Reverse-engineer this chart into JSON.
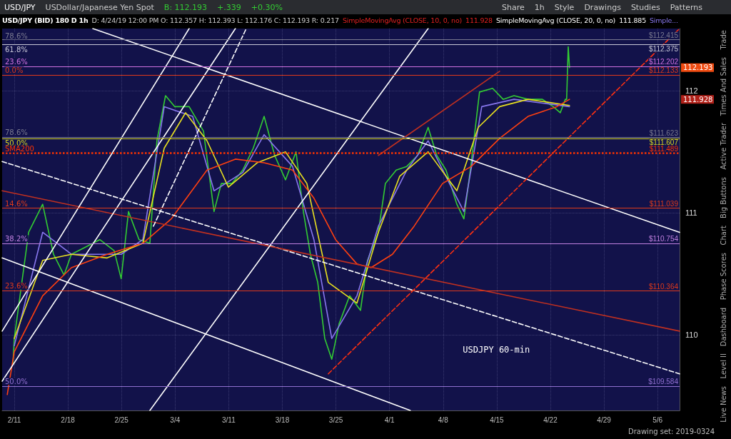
{
  "chart_data": {
    "type": "line",
    "title": "USD/JPY (BID) 180 D 1h",
    "subtitle": "D: 4/24/19 12:00 PM O: 112.357 H: 112.393 L: 112.176 C: 112.193 R: 0.217",
    "x": [
      "2019-02-10T20:00",
      "2019-02-11T00:00",
      "2019-02-12T21:00",
      "2019-02-14T17:00",
      "2019-02-16T03:00",
      "2019-02-17T12:00",
      "2019-02-18T11:00",
      "2019-02-20T08:00",
      "2019-02-22T04:00",
      "2019-02-24T01:00",
      "2019-02-24T23:00",
      "2019-02-25T22:00",
      "2019-02-27T07:00",
      "2019-02-28T17:00",
      "2019-03-01T15:00",
      "2019-03-02T18:00",
      "2019-03-03T23:00",
      "2019-03-05T20:00",
      "2019-03-07T17:00",
      "2019-03-09T02:00",
      "2019-03-10T01:00",
      "2019-03-11T10:00",
      "2019-03-12T20:00",
      "2019-03-14T05:00",
      "2019-03-15T15:00",
      "2019-03-17T00:00",
      "2019-03-18T10:00",
      "2019-03-19T19:00",
      "2019-03-20T18:00",
      "2019-03-21T16:00",
      "2019-03-22T15:00",
      "2019-03-23T13:00",
      "2019-03-24T11:00",
      "2019-03-25T10:00",
      "2019-03-26T19:00",
      "2019-03-28T05:00",
      "2019-03-29T03:00",
      "2019-03-30T13:00",
      "2019-03-31T11:00",
      "2019-04-01T21:00",
      "2019-04-03T06:00",
      "2019-04-04T16:00",
      "2019-04-06T01:00",
      "2019-04-07T04:00",
      "2019-04-08T09:00",
      "2019-04-09T19:00",
      "2019-04-10T17:00",
      "2019-04-11T16:00",
      "2019-04-12T18:00",
      "2019-04-14T11:00",
      "2019-04-15T20:00",
      "2019-04-17T06:00",
      "2019-04-19T02:00",
      "2019-04-20T23:00",
      "2019-04-22T09:00",
      "2019-04-23T07:00",
      "2019-04-23T23:00",
      "2019-04-24T03:00",
      "2019-04-24T08:00",
      "2019-04-24T12:00"
    ],
    "series": [
      {
        "color": "#33cc33",
        "values": [
          109.77,
          109.97,
          110.84,
          111.07,
          110.66,
          110.49,
          110.66,
          110.72,
          110.78,
          110.69,
          110.46,
          111.01,
          110.78,
          110.75,
          111.59,
          111.96,
          111.87,
          111.87,
          111.67,
          111.01,
          111.24,
          111.24,
          111.35,
          111.53,
          111.79,
          111.47,
          111.27,
          111.5,
          111.01,
          110.66,
          110.43,
          109.97,
          109.8,
          110.09,
          110.32,
          110.2,
          110.61,
          110.84,
          111.24,
          111.35,
          111.38,
          111.47,
          111.7,
          111.47,
          111.35,
          111.07,
          110.95,
          111.41,
          111.99,
          112.02,
          111.93,
          111.96,
          111.93,
          111.93,
          111.87,
          111.82,
          111.93,
          111.93,
          112.36,
          112.19
        ]
      },
      {
        "color": "#8877ee",
        "x": [
          "2019-02-11T00:00",
          "2019-02-14T17:00",
          "2019-02-18T11:00",
          "2019-02-24T23:00",
          "2019-02-27T19:00",
          "2019-03-02T14:00",
          "2019-03-06T07:00",
          "2019-03-09T02:00",
          "2019-03-12T20:00",
          "2019-03-15T15:00",
          "2019-03-19T08:00",
          "2019-03-22T03:00",
          "2019-03-24T11:00",
          "2019-03-27T18:00",
          "2019-03-30T13:00",
          "2019-04-03T06:00",
          "2019-04-06T01:00",
          "2019-04-08T20:00",
          "2019-04-10T17:00",
          "2019-04-13T01:00",
          "2019-04-17T06:00",
          "2019-04-24T12:00"
        ],
        "values": [
          109.91,
          110.84,
          110.66,
          110.66,
          110.78,
          111.87,
          111.79,
          111.18,
          111.33,
          111.64,
          111.38,
          110.78,
          109.97,
          110.32,
          110.89,
          111.35,
          111.59,
          111.24,
          111.01,
          111.87,
          111.93,
          111.87
        ]
      },
      {
        "color": "#e8e020",
        "x": [
          "2019-02-11T00:00",
          "2019-02-14T17:00",
          "2019-02-18T11:00",
          "2019-02-23T03:00",
          "2019-02-27T19:00",
          "2019-03-02T14:00",
          "2019-03-05T09:00",
          "2019-03-08T04:00",
          "2019-03-10T23:00",
          "2019-03-14T17:00",
          "2019-03-18T10:00",
          "2019-03-21T05:00",
          "2019-03-24T00:00",
          "2019-03-27T18:00",
          "2019-03-30T13:00",
          "2019-04-02T08:00",
          "2019-04-06T01:00",
          "2019-04-09T19:00",
          "2019-04-12T14:00",
          "2019-04-15T09:00",
          "2019-04-19T02:00",
          "2019-04-24T12:00"
        ],
        "values": [
          109.97,
          110.61,
          110.66,
          110.63,
          110.75,
          111.53,
          111.82,
          111.59,
          111.21,
          111.41,
          111.5,
          111.24,
          110.43,
          110.26,
          110.84,
          111.3,
          111.5,
          111.18,
          111.7,
          111.87,
          111.93,
          111.88
        ]
      },
      {
        "color": "#ff4010",
        "x": [
          "2019-02-10T02:00",
          "2019-02-11T00:00",
          "2019-02-14T17:00",
          "2019-02-18T11:00",
          "2019-02-23T03:00",
          "2019-02-27T19:00",
          "2019-03-03T12:00",
          "2019-03-08T04:00",
          "2019-03-11T21:00",
          "2019-03-15T15:00",
          "2019-03-19T08:00",
          "2019-03-22T03:00",
          "2019-03-24T23:00",
          "2019-03-27T18:00",
          "2019-03-29T14:00",
          "2019-04-01T09:00",
          "2019-04-04T05:00",
          "2019-04-07T22:00",
          "2019-04-11T16:00",
          "2019-04-15T09:00",
          "2019-04-19T02:00",
          "2019-04-22T20:00",
          "2019-04-24T12:00"
        ],
        "values": [
          109.51,
          109.86,
          110.32,
          110.55,
          110.66,
          110.75,
          110.95,
          111.35,
          111.44,
          111.41,
          111.35,
          111.12,
          110.78,
          110.58,
          110.55,
          110.66,
          110.89,
          111.24,
          111.38,
          111.61,
          111.79,
          111.87,
          111.93
        ]
      },
      {
        "color": "#ffffff",
        "x": [
          "2019-02-21T06:00",
          "2019-05-08T21:00"
        ],
        "values": [
          112.51,
          110.84
        ]
      },
      {
        "color": "#ffffff",
        "x": [
          "2019-02-09T10:00",
          "2019-04-03T17:00"
        ],
        "values": [
          110.63,
          109.38
        ]
      },
      {
        "color": "#ffffff",
        "line_style": "dashed",
        "x": [
          "2019-02-09T10:00",
          "2019-05-08T21:00"
        ],
        "values": [
          111.42,
          109.68
        ]
      },
      {
        "color": "#c03020",
        "x": [
          "2019-02-09T10:00",
          "2019-05-08T21:00"
        ],
        "values": [
          111.18,
          110.03
        ]
      },
      {
        "color": "#ffffff",
        "x": [
          "2019-02-09T10:00",
          "2019-03-05T20:00"
        ],
        "values": [
          110.03,
          112.51
        ]
      },
      {
        "color": "#ffffff",
        "x": [
          "2019-02-09T10:00",
          "2019-03-11T21:00"
        ],
        "values": [
          109.62,
          112.51
        ]
      },
      {
        "color": "#ffffff",
        "x": [
          "2019-02-28T17:00",
          "2019-04-06T01:00"
        ],
        "values": [
          109.38,
          112.51
        ]
      },
      {
        "color": "#ffffff",
        "line_style": "dashed",
        "x": [
          "2019-03-01T04:00",
          "2019-03-13T07:00"
        ],
        "values": [
          110.89,
          112.51
        ]
      },
      {
        "color": "#ff3010",
        "line_style": "dashed",
        "x": [
          "2019-03-24T00:00",
          "2019-05-08T21:00"
        ],
        "values": [
          109.68,
          112.51
        ]
      },
      {
        "color": "#c03020",
        "x": [
          "2019-03-30T13:00",
          "2019-04-15T09:00"
        ],
        "values": [
          111.47,
          112.16
        ]
      }
    ],
    "xlim": [
      "2019-02-09T10:00",
      "2019-05-08T21:00"
    ],
    "xticks": [
      {
        "value": "2019-02-11",
        "label": "2/11"
      },
      {
        "value": "2019-02-18",
        "label": "2/18"
      },
      {
        "value": "2019-02-25",
        "label": "2/25"
      },
      {
        "value": "2019-03-04",
        "label": "3/4"
      },
      {
        "value": "2019-03-11",
        "label": "3/11"
      },
      {
        "value": "2019-03-18",
        "label": "3/18"
      },
      {
        "value": "2019-03-25",
        "label": "3/25"
      },
      {
        "value": "2019-04-01",
        "label": "4/1"
      },
      {
        "value": "2019-04-08",
        "label": "4/8"
      },
      {
        "value": "2019-04-15",
        "label": "4/15"
      },
      {
        "value": "2019-04-22",
        "label": "4/22"
      },
      {
        "value": "2019-04-29",
        "label": "4/29"
      },
      {
        "value": "2019-05-06",
        "label": "5/6"
      }
    ],
    "ylim": [
      109.38,
      112.51
    ],
    "yticks": [
      110,
      111,
      112
    ],
    "grid": true,
    "marker": "none",
    "line_style": "solid",
    "ref_lines": [
      {
        "axis": "y",
        "value": 112.415,
        "label": "$112.415",
        "color": "#7a7a90"
      },
      {
        "axis": "y",
        "value": 112.375,
        "label": "$112.375",
        "color": "#c8c8d8"
      },
      {
        "axis": "y",
        "value": 112.202,
        "label": "$112.202",
        "color": "#d070e0"
      },
      {
        "axis": "y",
        "value": 112.133,
        "label": "$112.133",
        "color": "#e03a1a"
      },
      {
        "axis": "y",
        "value": 111.623,
        "label": "$111.623",
        "color": "#7a7a90"
      },
      {
        "axis": "y",
        "value": 111.607,
        "label": "$111.607",
        "color": "#d8d820"
      },
      {
        "axis": "y",
        "value": 111.489,
        "label": "$111.489",
        "color": "#ff3300",
        "line_style": "dotted"
      },
      {
        "axis": "y",
        "value": 111.039,
        "label": "$111.039",
        "color": "#e03a1a"
      },
      {
        "axis": "y",
        "value": 110.754,
        "label": "$110.754",
        "color": "#c080e0"
      },
      {
        "axis": "y",
        "value": 110.364,
        "label": "$110.364",
        "color": "#e03a1a"
      },
      {
        "axis": "y",
        "value": 109.584,
        "label": "$109.584",
        "color": "#9070d0"
      }
    ],
    "annotations": [
      "USD/JPY",
      "USDollar/Japanese Yen Spot",
      "B: 112.193",
      "+.339",
      "+0.30%",
      "Share",
      "1h",
      "Style",
      "Drawings",
      "Studies",
      "Patterns",
      "SimpleMovingAvg (CLOSE, 10, 0, no)",
      "111.928",
      "SimpleMovingAvg (CLOSE, 20, 0, no)",
      "111.885",
      "Simple...",
      "Trade",
      "Times And Sales",
      "Active Trader",
      "Big Buttons",
      "Chart",
      "Phase Scores",
      "Dashboard",
      "Level II",
      "Live News",
      "Drawing set: 2019-0324",
      "USDJPY 60-min",
      "112.193",
      "111.928",
      {
        "text": "78.6%",
        "y": 112.415
      },
      {
        "text": "61.8%",
        "y": 112.375
      },
      {
        "text": "23.6%",
        "y": 112.202
      },
      {
        "text": "0.0%",
        "y": 112.133
      },
      {
        "text": "78.6%",
        "y": 111.623
      },
      {
        "text": "50.0%",
        "y": 111.607
      },
      {
        "text": "SMA200",
        "y": 111.489
      },
      {
        "text": "14.6%",
        "y": 111.039
      },
      {
        "text": "38.2%",
        "y": 110.754
      },
      {
        "text": "23.6%",
        "y": 110.364
      },
      {
        "text": "50.0%",
        "y": 109.584
      }
    ]
  }
}
